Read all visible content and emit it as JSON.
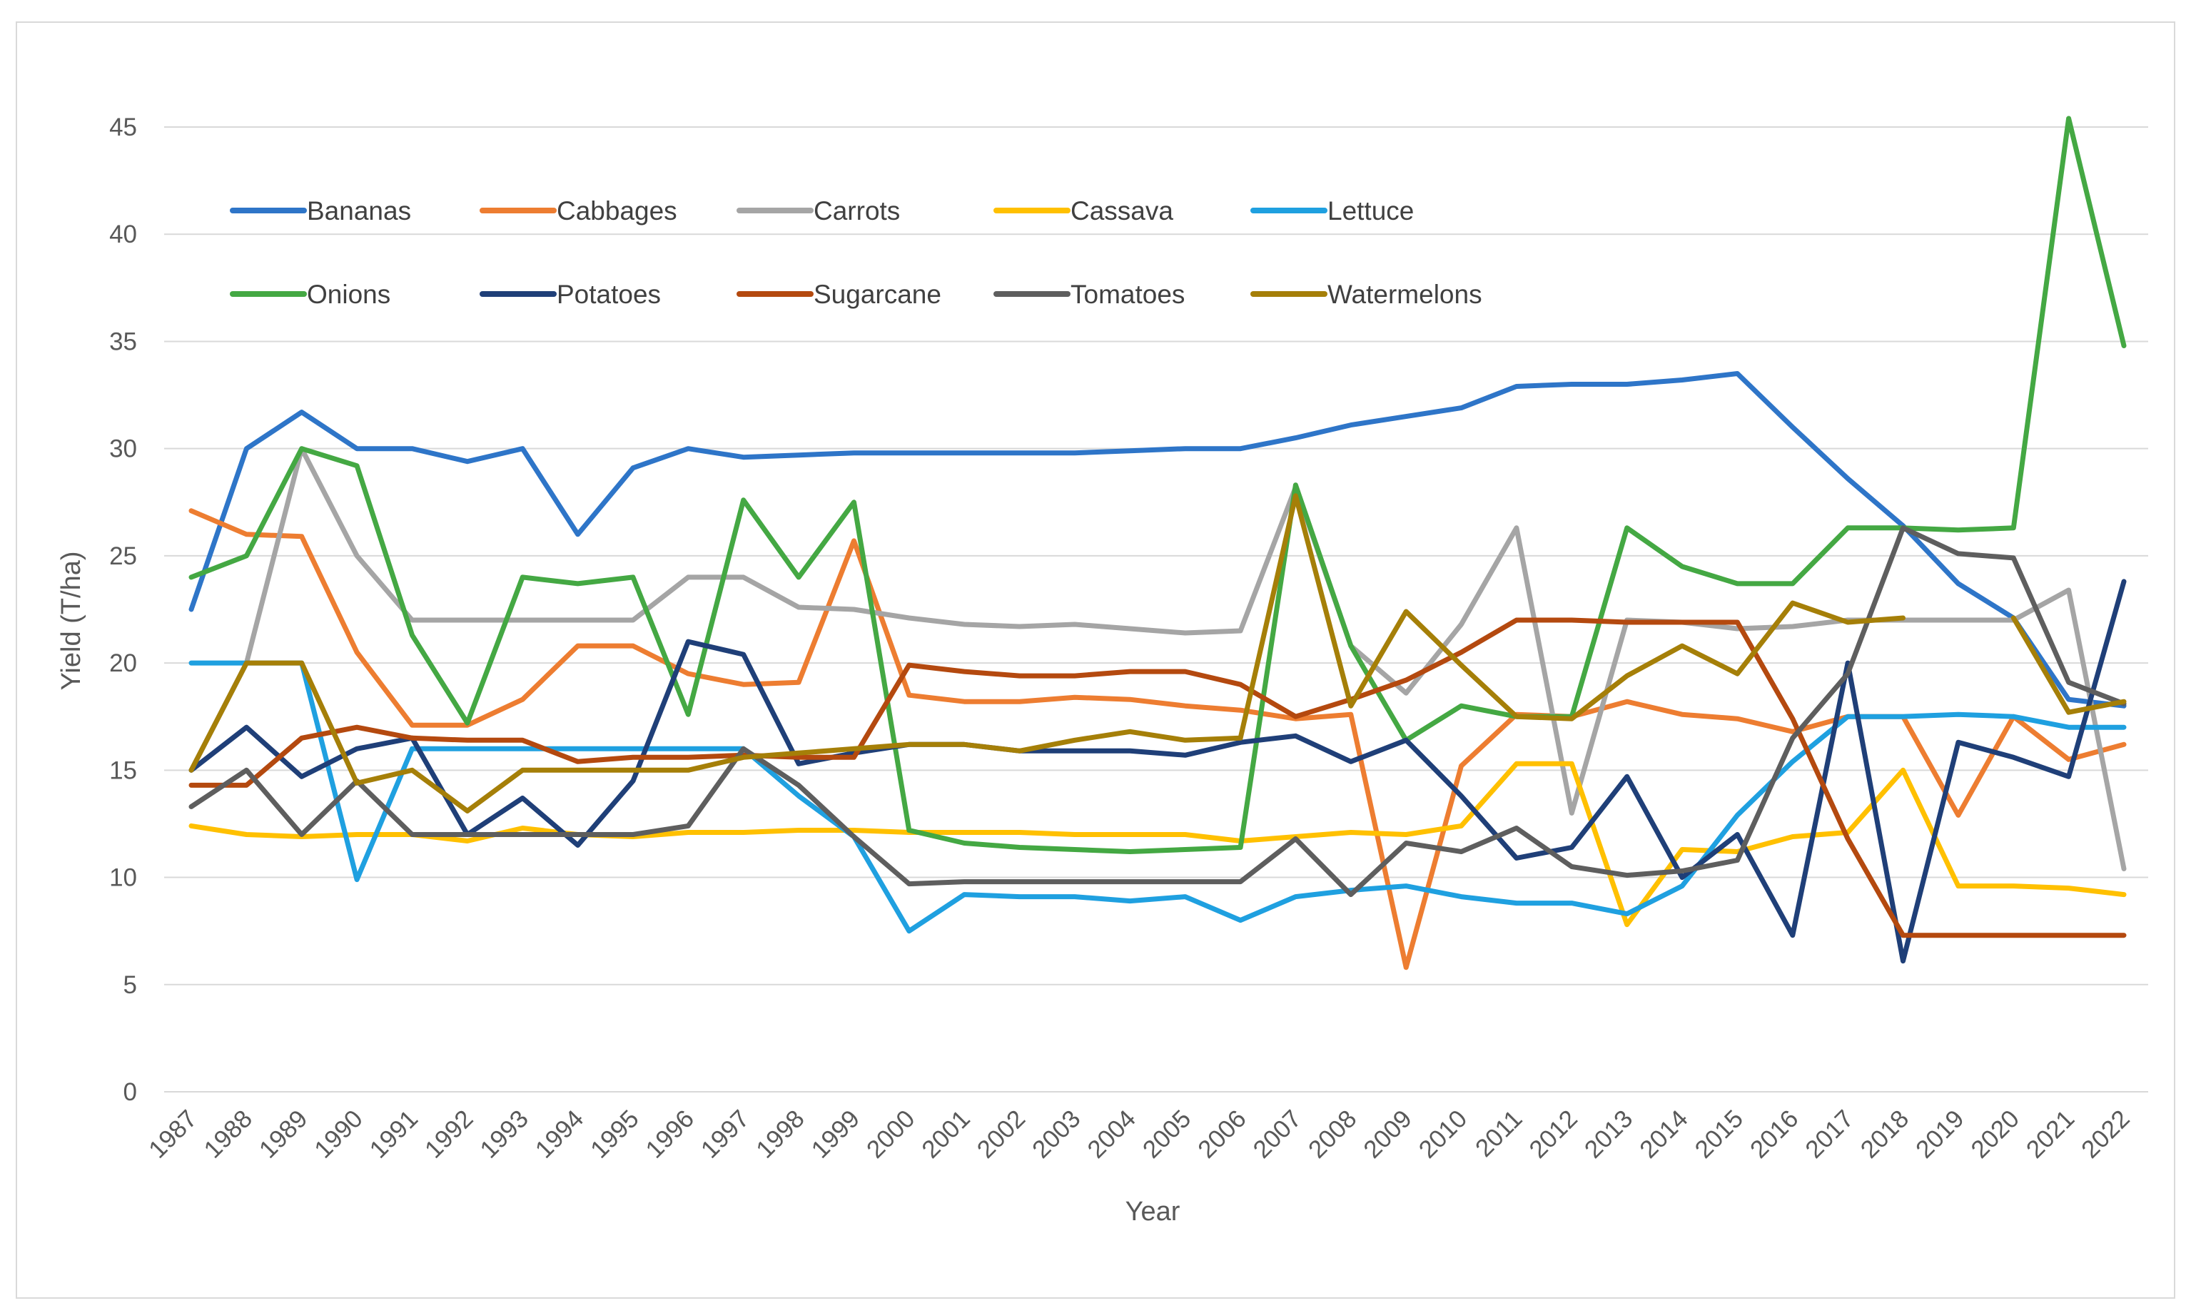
{
  "chart_data": {
    "type": "line",
    "title": "",
    "xlabel": "Year",
    "ylabel": "Yield (T/ha)",
    "ylim": [
      0,
      45
    ],
    "yticks": [
      "0",
      "5",
      "10",
      "15",
      "20",
      "25",
      "30",
      "35",
      "40",
      "45"
    ],
    "categories": [
      "1987",
      "1988",
      "1989",
      "1990",
      "1991",
      "1992",
      "1993",
      "1994",
      "1995",
      "1996",
      "1997",
      "1998",
      "1999",
      "2000",
      "2001",
      "2002",
      "2003",
      "2004",
      "2005",
      "2006",
      "2007",
      "2008",
      "2009",
      "2010",
      "2011",
      "2012",
      "2013",
      "2014",
      "2015",
      "2016",
      "2017",
      "2018",
      "2019",
      "2020",
      "2021",
      "2022"
    ],
    "grid": true,
    "legend": "top-left",
    "series": [
      {
        "name": "Bananas",
        "color": "#2E75C8",
        "values": [
          22.5,
          30,
          31.7,
          30,
          30,
          29.4,
          30,
          26,
          29.1,
          30,
          29.6,
          29.7,
          29.8,
          29.8,
          29.8,
          29.8,
          29.8,
          29.9,
          30,
          30,
          30.5,
          31.1,
          31.5,
          31.9,
          32.9,
          33,
          33,
          33.2,
          33.5,
          31,
          28.6,
          26.4,
          23.7,
          22.1,
          18.3,
          18
        ]
      },
      {
        "name": "Cabbages",
        "color": "#ED7D31",
        "values": [
          27.1,
          26,
          25.9,
          20.5,
          17.1,
          17.1,
          18.3,
          20.8,
          20.8,
          19.5,
          19,
          19.1,
          25.7,
          18.5,
          18.2,
          18.2,
          18.4,
          18.3,
          18,
          17.8,
          17.4,
          17.6,
          5.8,
          15.2,
          17.6,
          17.5,
          18.2,
          17.6,
          17.4,
          16.8,
          17.5,
          17.5,
          12.9,
          17.5,
          15.5,
          16.2
        ]
      },
      {
        "name": "Carrots",
        "color": "#A5A5A5",
        "values": [
          15,
          20,
          30,
          25,
          22,
          22,
          22,
          22,
          22,
          24,
          24,
          22.6,
          22.5,
          22.1,
          21.8,
          21.7,
          21.8,
          21.6,
          21.4,
          21.5,
          28.2,
          20.8,
          18.6,
          21.8,
          26.3,
          13,
          22,
          21.9,
          21.6,
          21.7,
          22,
          22,
          22,
          22,
          23.4,
          10.4
        ]
      },
      {
        "name": "Cassava",
        "color": "#FFC000",
        "values": [
          12.4,
          12,
          11.9,
          12,
          12,
          11.7,
          12.3,
          12,
          11.9,
          12.1,
          12.1,
          12.2,
          12.2,
          12.1,
          12.1,
          12.1,
          12,
          12,
          12,
          11.7,
          11.9,
          12.1,
          12,
          12.4,
          15.3,
          15.3,
          7.8,
          11.3,
          11.2,
          11.9,
          12.1,
          15,
          9.6,
          9.6,
          9.5,
          9.2
        ]
      },
      {
        "name": "Lettuce",
        "color": "#1FA0E0",
        "values": [
          20,
          20,
          20,
          9.9,
          16,
          16,
          16,
          16,
          16,
          16,
          16,
          13.8,
          11.9,
          7.5,
          9.2,
          9.1,
          9.1,
          8.9,
          9.1,
          8,
          9.1,
          9.4,
          9.6,
          9.1,
          8.8,
          8.8,
          8.3,
          9.6,
          12.9,
          15.4,
          17.5,
          17.5,
          17.6,
          17.5,
          17,
          17
        ]
      },
      {
        "name": "Onions",
        "color": "#44A843",
        "values": [
          24,
          25,
          30,
          29.2,
          21.3,
          17.2,
          24,
          23.7,
          24,
          17.6,
          27.6,
          24,
          27.5,
          12.2,
          11.6,
          11.4,
          11.3,
          11.2,
          11.3,
          11.4,
          28.3,
          20.8,
          16.4,
          18,
          17.5,
          17.5,
          26.3,
          24.5,
          23.7,
          23.7,
          26.3,
          26.3,
          26.2,
          26.3,
          45.4,
          34.8
        ]
      },
      {
        "name": "Potatoes",
        "color": "#1F3F78",
        "values": [
          15,
          17,
          14.7,
          16,
          16.5,
          12,
          13.7,
          11.5,
          14.5,
          21,
          20.4,
          15.3,
          15.8,
          16.2,
          16.2,
          15.9,
          15.9,
          15.9,
          15.7,
          16.3,
          16.6,
          15.4,
          16.4,
          13.8,
          10.9,
          11.4,
          14.7,
          10,
          12,
          7.3,
          20,
          6.1,
          16.3,
          15.6,
          14.7,
          23.8
        ]
      },
      {
        "name": "Sugarcane",
        "color": "#B4490F",
        "values": [
          14.3,
          14.3,
          16.5,
          17,
          16.5,
          16.4,
          16.4,
          15.4,
          15.6,
          15.6,
          15.7,
          15.6,
          15.6,
          19.9,
          19.6,
          19.4,
          19.4,
          19.6,
          19.6,
          19,
          17.5,
          18.3,
          19.2,
          20.5,
          22,
          22,
          21.9,
          21.9,
          21.9,
          17.4,
          11.8,
          7.3,
          7.3,
          7.3,
          7.3,
          7.3
        ]
      },
      {
        "name": "Tomatoes",
        "color": "#5E5E5E",
        "values": [
          13.3,
          15,
          12,
          14.5,
          12,
          12,
          12,
          12,
          12,
          12.4,
          16,
          14.3,
          11.9,
          9.7,
          9.8,
          9.8,
          9.8,
          9.8,
          9.8,
          9.8,
          11.8,
          9.2,
          11.6,
          11.2,
          12.3,
          10.5,
          10.1,
          10.3,
          10.8,
          16.5,
          19.5,
          26.3,
          25.1,
          24.9,
          19.1,
          18.1
        ]
      },
      {
        "name": "Watermelons",
        "color": "#A57F08",
        "values": [
          15,
          20,
          20,
          14.4,
          15,
          13.1,
          15,
          15,
          15,
          15,
          15.6,
          15.8,
          16,
          16.2,
          16.2,
          15.9,
          16.4,
          16.8,
          16.4,
          16.5,
          27.8,
          18,
          22.4,
          19.9,
          17.5,
          17.4,
          19.4,
          20.8,
          19.5,
          22.8,
          21.9,
          22.1,
          null,
          22.1,
          17.7,
          18.2
        ]
      }
    ]
  }
}
